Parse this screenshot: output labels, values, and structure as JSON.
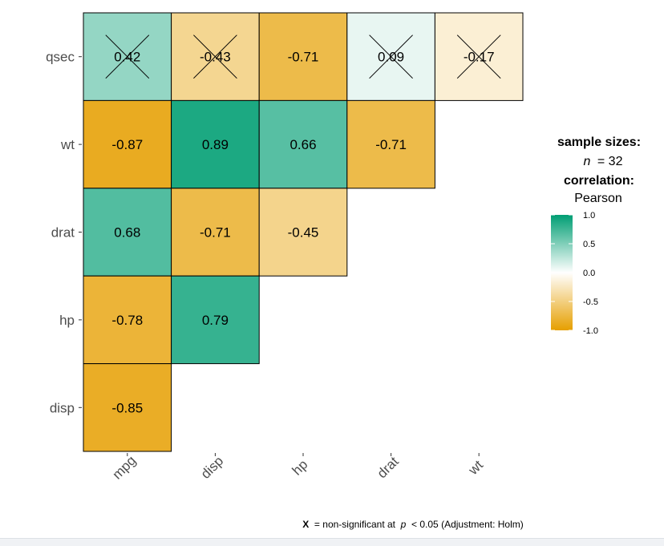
{
  "chart_data": {
    "type": "heatmap",
    "rows": [
      "qsec",
      "wt",
      "drat",
      "hp",
      "disp"
    ],
    "columns": [
      "mpg",
      "disp",
      "hp",
      "drat",
      "wt"
    ],
    "cells": [
      {
        "row": "qsec",
        "col": "mpg",
        "value": 0.42,
        "label": "0.42",
        "crossed": true
      },
      {
        "row": "qsec",
        "col": "disp",
        "value": -0.43,
        "label": "-0.43",
        "crossed": true
      },
      {
        "row": "qsec",
        "col": "hp",
        "value": -0.71,
        "label": "-0.71",
        "crossed": false
      },
      {
        "row": "qsec",
        "col": "drat",
        "value": 0.09,
        "label": "0.09",
        "crossed": true
      },
      {
        "row": "qsec",
        "col": "wt",
        "value": -0.17,
        "label": "-0.17",
        "crossed": true
      },
      {
        "row": "wt",
        "col": "mpg",
        "value": -0.87,
        "label": "-0.87",
        "crossed": false
      },
      {
        "row": "wt",
        "col": "disp",
        "value": 0.89,
        "label": "0.89",
        "crossed": false
      },
      {
        "row": "wt",
        "col": "hp",
        "value": 0.66,
        "label": "0.66",
        "crossed": false
      },
      {
        "row": "wt",
        "col": "drat",
        "value": -0.71,
        "label": "-0.71",
        "crossed": false
      },
      {
        "row": "drat",
        "col": "mpg",
        "value": 0.68,
        "label": "0.68",
        "crossed": false
      },
      {
        "row": "drat",
        "col": "disp",
        "value": -0.71,
        "label": "-0.71",
        "crossed": false
      },
      {
        "row": "drat",
        "col": "hp",
        "value": -0.45,
        "label": "-0.45",
        "crossed": false
      },
      {
        "row": "hp",
        "col": "mpg",
        "value": -0.78,
        "label": "-0.78",
        "crossed": false
      },
      {
        "row": "hp",
        "col": "disp",
        "value": 0.79,
        "label": "0.79",
        "crossed": false
      },
      {
        "row": "disp",
        "col": "mpg",
        "value": -0.85,
        "label": "-0.85",
        "crossed": false
      }
    ],
    "legend": {
      "title_line1": "sample sizes:",
      "n_label": "n",
      "n_value": "= 32",
      "title_line2": "correlation:",
      "method": "Pearson",
      "ticks": [
        {
          "value": 1.0,
          "label": "1.0"
        },
        {
          "value": 0.5,
          "label": "0.5"
        },
        {
          "value": 0.0,
          "label": "0.0"
        },
        {
          "value": -0.5,
          "label": "-0.5"
        },
        {
          "value": -1.0,
          "label": "-1.0"
        }
      ],
      "range": [
        -1,
        1
      ],
      "placement": "right"
    },
    "caption": {
      "symbol": "X",
      "text_before_p": " = non-significant at ",
      "p": "p",
      "text_after_p": " < 0.05 (Adjustment: Holm)"
    },
    "colors": {
      "low": "#E69F00",
      "mid": "#FFFFFF",
      "high": "#009E73"
    }
  }
}
